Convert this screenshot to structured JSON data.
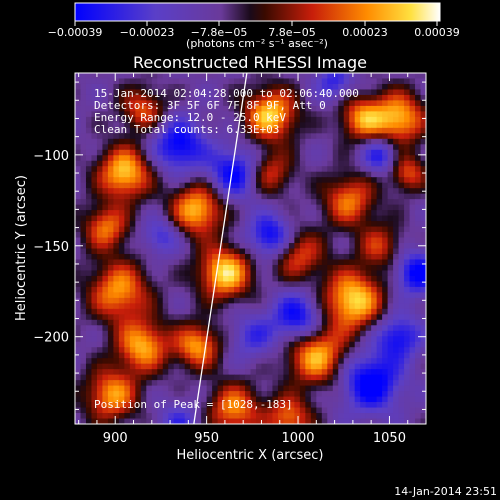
{
  "chart_data": {
    "type": "heatmap",
    "title": "Reconstructed RHESSI Image",
    "xlabel": "Heliocentric X (arcsec)",
    "ylabel": "Heliocentric Y (arcsec)",
    "xlim": [
      878,
      1070
    ],
    "ylim": [
      -248,
      -55
    ],
    "x_ticks": [
      900,
      950,
      1000,
      1050
    ],
    "y_ticks": [
      -100,
      -150,
      -200
    ],
    "x_tick_labels": [
      "900",
      "950",
      "1000",
      "1050"
    ],
    "y_tick_labels": [
      "−100",
      "−150",
      "−200"
    ],
    "colorbar": {
      "min": -0.00039,
      "max": 0.00039,
      "tick_labels": [
        "−0.00039",
        "−0.00023",
        "−7.8e−05",
        "7.8e−05",
        "0.00023",
        "0.00039"
      ],
      "units_label": "(photons cm⁻² s⁻¹ asec⁻²)"
    },
    "annotations": [
      "15-Jan-2014 02:04:28.000 to 02:06:40.000",
      "Detectors: 3F 5F 6F 7F 8F 9F, Att 0",
      "Energy Range: 12.0 - 25.0 keV",
      "Clean     Total counts: 6.33E+03"
    ],
    "peak_label": "Position of Peak = [1028,-183]",
    "limb_line": {
      "x": [
        943,
        972
      ],
      "y": [
        -248,
        -55
      ]
    },
    "grid": false,
    "colormap": "blue-purple-black-red-yellow-white"
  },
  "timestamp": "14-Jan-2014 23:51"
}
